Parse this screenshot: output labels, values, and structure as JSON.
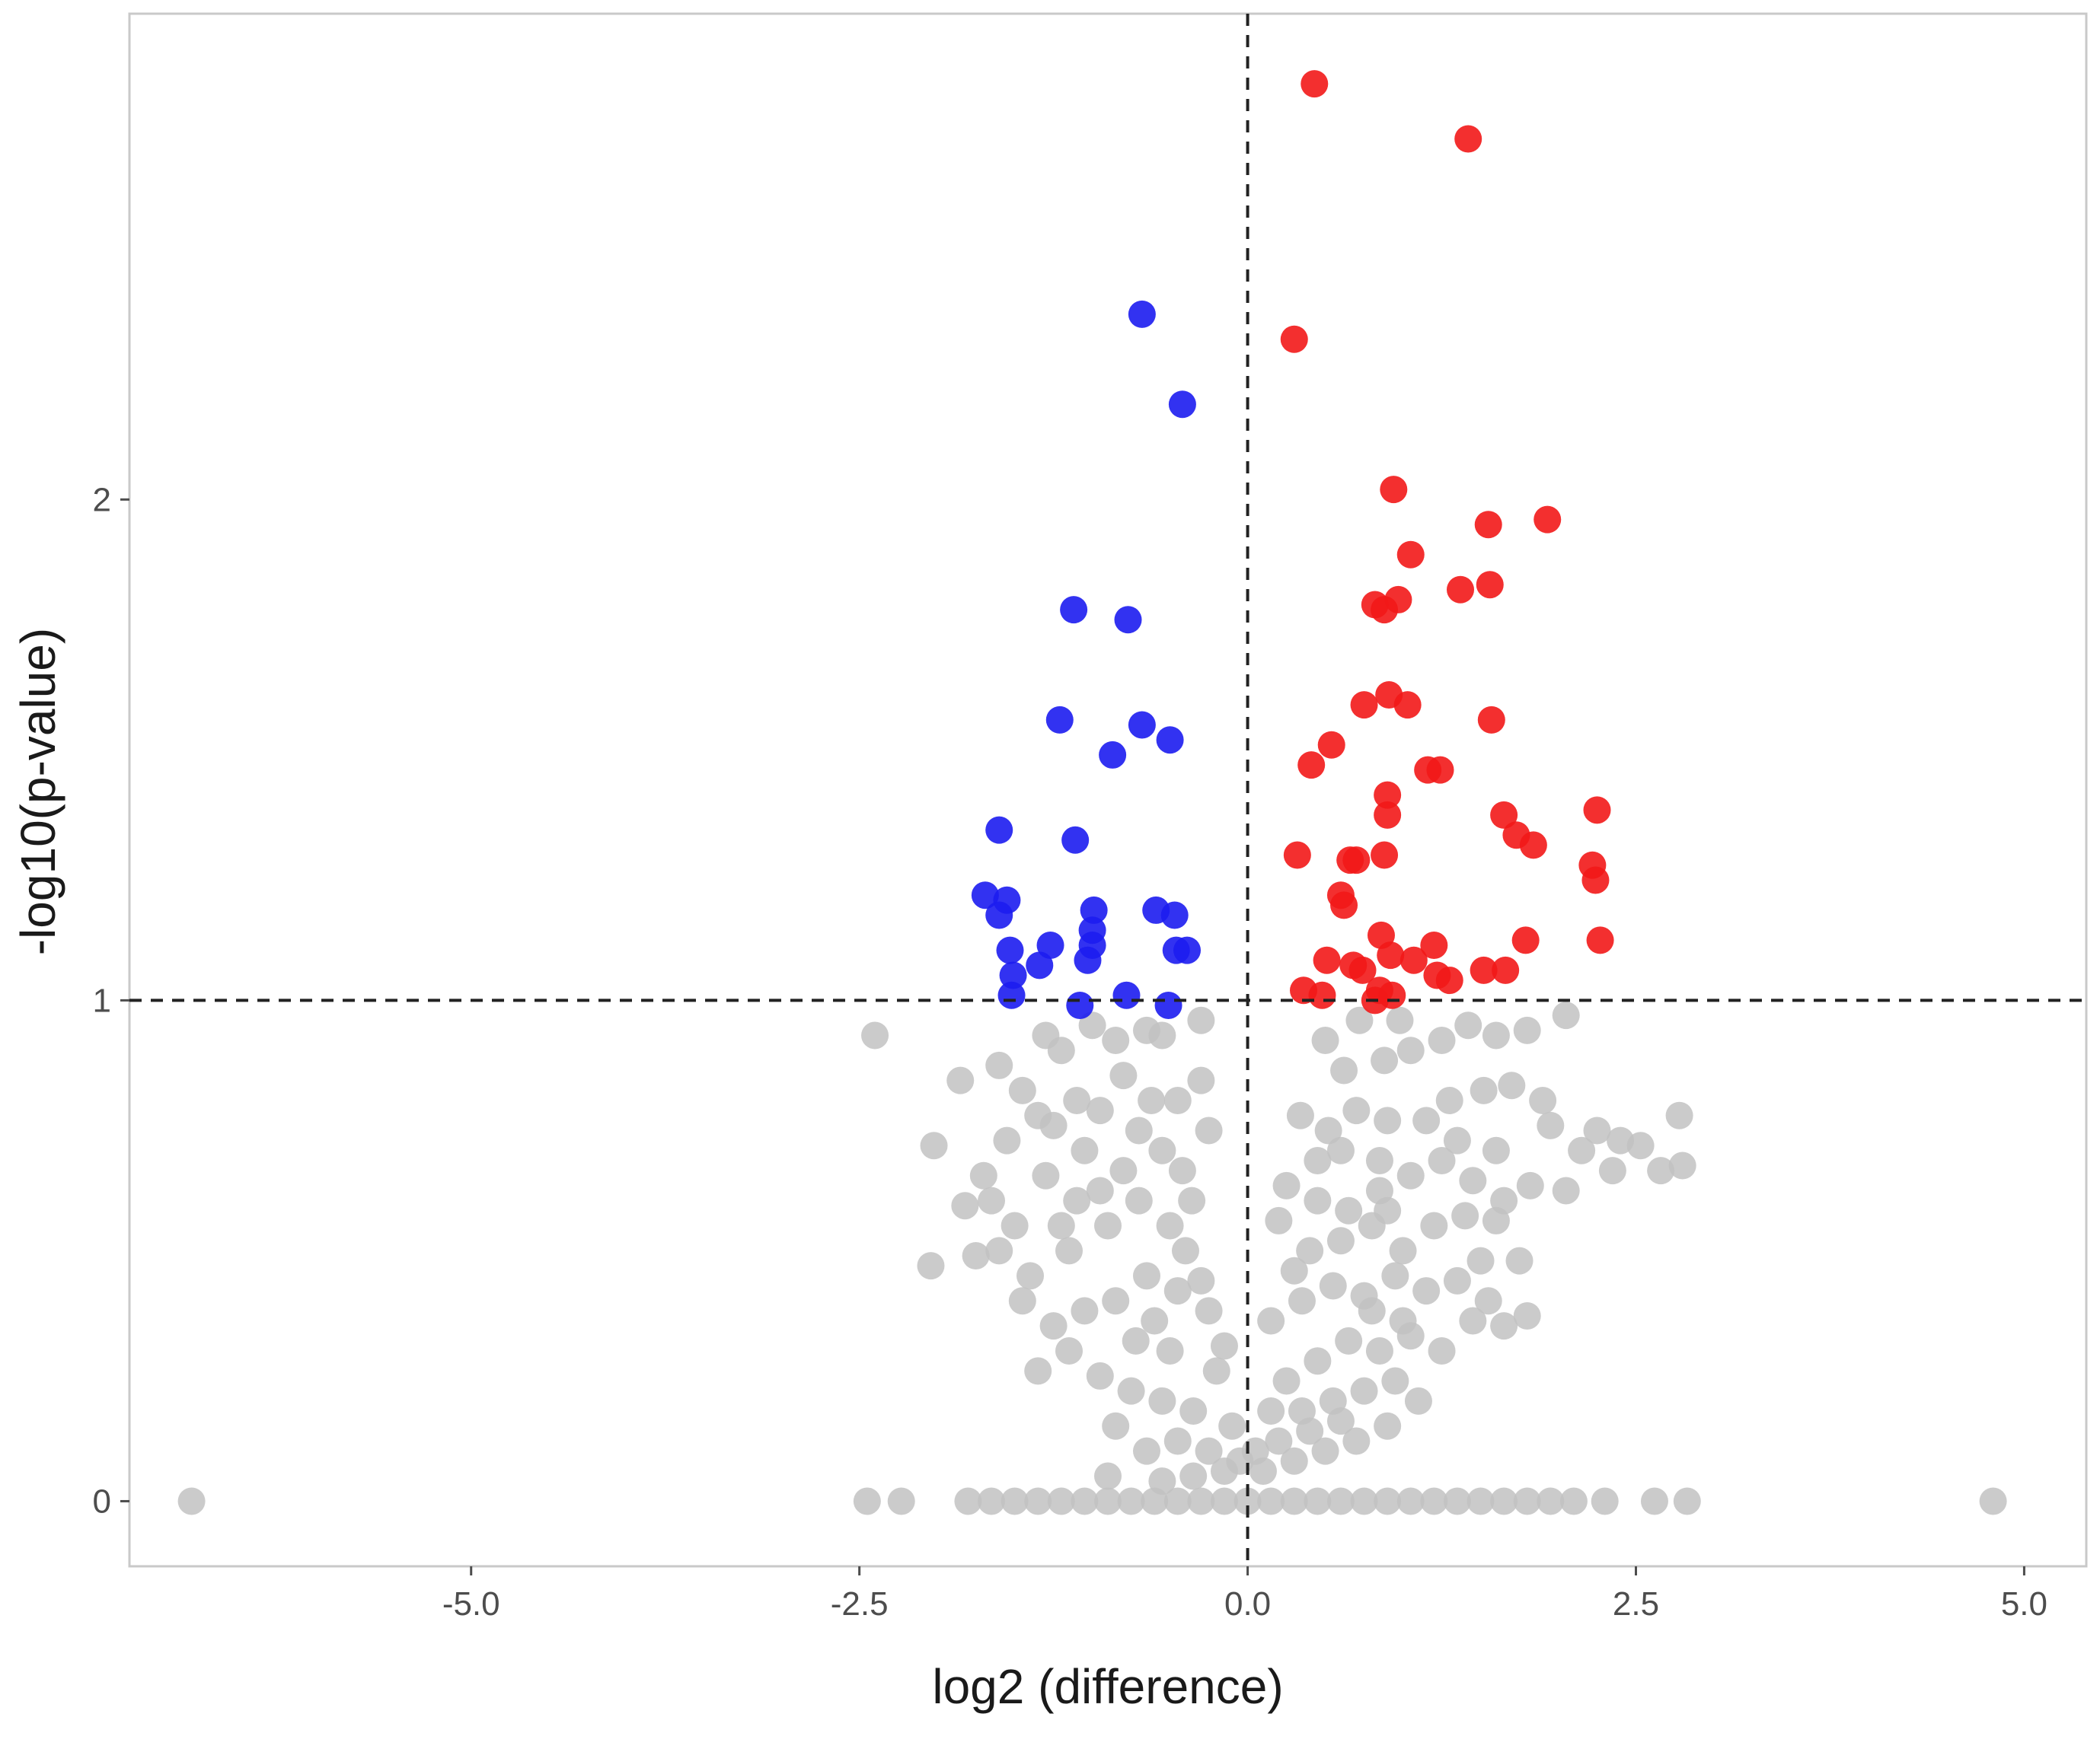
{
  "chart_data": {
    "type": "scatter",
    "title": "",
    "xlabel": "log2 (difference)",
    "ylabel": "-log10(p-value)",
    "xlim": [
      -7.2,
      5.4
    ],
    "ylim": [
      -0.13,
      2.97
    ],
    "x_ticks": [
      -5.0,
      -2.5,
      0.0,
      2.5,
      5.0
    ],
    "x_tick_labels": [
      "-5.0",
      "-2.5",
      "0.0",
      "2.5",
      "5.0"
    ],
    "y_ticks": [
      0,
      1,
      2
    ],
    "y_tick_labels": [
      "0",
      "1",
      "2"
    ],
    "threshold_lines": {
      "x": 0.0,
      "y": 1.0
    },
    "grid": false,
    "colors": {
      "up": "#f21818",
      "down": "#1c1cf0",
      "ns": "#c2c2c2",
      "threshold": "#222222",
      "frame": "#c9c9c9"
    },
    "series": [
      {
        "name": "up",
        "points": [
          [
            0.43,
            2.83
          ],
          [
            1.42,
            2.72
          ],
          [
            0.3,
            2.32
          ],
          [
            0.94,
            2.02
          ],
          [
            1.55,
            1.95
          ],
          [
            1.93,
            1.96
          ],
          [
            1.05,
            1.89
          ],
          [
            0.82,
            1.79
          ],
          [
            0.88,
            1.78
          ],
          [
            0.97,
            1.8
          ],
          [
            1.37,
            1.82
          ],
          [
            1.56,
            1.83
          ],
          [
            0.75,
            1.59
          ],
          [
            0.91,
            1.61
          ],
          [
            1.03,
            1.59
          ],
          [
            1.57,
            1.56
          ],
          [
            0.54,
            1.51
          ],
          [
            0.41,
            1.47
          ],
          [
            1.16,
            1.46
          ],
          [
            1.24,
            1.46
          ],
          [
            0.9,
            1.41
          ],
          [
            0.9,
            1.37
          ],
          [
            1.65,
            1.37
          ],
          [
            2.25,
            1.38
          ],
          [
            1.73,
            1.33
          ],
          [
            1.84,
            1.31
          ],
          [
            0.32,
            1.29
          ],
          [
            0.66,
            1.28
          ],
          [
            0.7,
            1.28
          ],
          [
            0.88,
            1.29
          ],
          [
            2.22,
            1.27
          ],
          [
            2.24,
            1.24
          ],
          [
            0.6,
            1.21
          ],
          [
            0.62,
            1.19
          ],
          [
            0.86,
            1.13
          ],
          [
            1.79,
            1.12
          ],
          [
            2.27,
            1.12
          ],
          [
            1.2,
            1.11
          ],
          [
            0.51,
            1.08
          ],
          [
            0.68,
            1.07
          ],
          [
            0.74,
            1.06
          ],
          [
            0.92,
            1.09
          ],
          [
            1.07,
            1.08
          ],
          [
            1.52,
            1.06
          ],
          [
            1.66,
            1.06
          ],
          [
            1.22,
            1.05
          ],
          [
            1.3,
            1.04
          ],
          [
            0.36,
            1.02
          ],
          [
            0.48,
            1.01
          ],
          [
            0.85,
            1.02
          ],
          [
            0.93,
            1.01
          ],
          [
            0.82,
            1.0
          ]
        ]
      },
      {
        "name": "down",
        "points": [
          [
            -0.68,
            2.37
          ],
          [
            -0.42,
            2.19
          ],
          [
            -1.12,
            1.78
          ],
          [
            -0.77,
            1.76
          ],
          [
            -1.21,
            1.56
          ],
          [
            -0.68,
            1.55
          ],
          [
            -0.5,
            1.52
          ],
          [
            -0.87,
            1.49
          ],
          [
            -1.6,
            1.34
          ],
          [
            -1.11,
            1.32
          ],
          [
            -1.69,
            1.21
          ],
          [
            -1.55,
            1.2
          ],
          [
            -1.6,
            1.17
          ],
          [
            -0.99,
            1.18
          ],
          [
            -0.59,
            1.18
          ],
          [
            -0.47,
            1.17
          ],
          [
            -1.0,
            1.14
          ],
          [
            -1.0,
            1.11
          ],
          [
            -1.27,
            1.11
          ],
          [
            -1.53,
            1.1
          ],
          [
            -0.46,
            1.1
          ],
          [
            -0.39,
            1.1
          ],
          [
            -1.03,
            1.08
          ],
          [
            -1.34,
            1.07
          ],
          [
            -1.51,
            1.05
          ],
          [
            -0.78,
            1.01
          ],
          [
            -1.52,
            1.01
          ],
          [
            -1.08,
            0.99
          ],
          [
            -0.51,
            0.99
          ]
        ]
      },
      {
        "name": "ns",
        "points": [
          [
            -6.8,
            0.0
          ],
          [
            -2.45,
            0.0
          ],
          [
            -2.23,
            0.0
          ],
          [
            4.8,
            0.0
          ],
          [
            2.62,
            0.0
          ],
          [
            2.83,
            0.0
          ],
          [
            -1.8,
            0.0
          ],
          [
            -1.65,
            0.0
          ],
          [
            -1.5,
            0.0
          ],
          [
            -1.35,
            0.0
          ],
          [
            -1.2,
            0.0
          ],
          [
            -1.05,
            0.0
          ],
          [
            -0.9,
            0.0
          ],
          [
            -0.75,
            0.0
          ],
          [
            -0.6,
            0.0
          ],
          [
            -0.45,
            0.0
          ],
          [
            -0.3,
            0.0
          ],
          [
            -0.15,
            0.0
          ],
          [
            0.0,
            0.0
          ],
          [
            0.15,
            0.0
          ],
          [
            0.3,
            0.0
          ],
          [
            0.45,
            0.0
          ],
          [
            0.6,
            0.0
          ],
          [
            0.75,
            0.0
          ],
          [
            0.9,
            0.0
          ],
          [
            1.05,
            0.0
          ],
          [
            1.2,
            0.0
          ],
          [
            1.35,
            0.0
          ],
          [
            1.5,
            0.0
          ],
          [
            1.65,
            0.0
          ],
          [
            1.8,
            0.0
          ],
          [
            1.95,
            0.0
          ],
          [
            2.1,
            0.0
          ],
          [
            2.3,
            0.0
          ],
          [
            -2.4,
            0.93
          ],
          [
            -1.85,
            0.84
          ],
          [
            -1.6,
            0.87
          ],
          [
            -2.02,
            0.71
          ],
          [
            -1.82,
            0.59
          ],
          [
            -2.04,
            0.47
          ],
          [
            -1.3,
            0.93
          ],
          [
            -1.45,
            0.82
          ],
          [
            -1.35,
            0.77
          ],
          [
            -1.2,
            0.9
          ],
          [
            -1.0,
            0.95
          ],
          [
            -0.85,
            0.92
          ],
          [
            -0.65,
            0.94
          ],
          [
            -0.55,
            0.93
          ],
          [
            -0.3,
            0.96
          ],
          [
            -0.3,
            0.84
          ],
          [
            -0.25,
            0.74
          ],
          [
            -0.45,
            0.8
          ],
          [
            -0.55,
            0.7
          ],
          [
            -0.8,
            0.85
          ],
          [
            -0.95,
            0.78
          ],
          [
            -1.1,
            0.8
          ],
          [
            -1.25,
            0.75
          ],
          [
            -1.55,
            0.72
          ],
          [
            -1.7,
            0.65
          ],
          [
            -1.65,
            0.6
          ],
          [
            -1.5,
            0.55
          ],
          [
            -1.6,
            0.5
          ],
          [
            -1.75,
            0.49
          ],
          [
            -1.4,
            0.45
          ],
          [
            -1.15,
            0.5
          ],
          [
            -0.9,
            0.55
          ],
          [
            -0.7,
            0.6
          ],
          [
            -0.5,
            0.55
          ],
          [
            -0.4,
            0.5
          ],
          [
            -0.3,
            0.44
          ],
          [
            -0.25,
            0.38
          ],
          [
            -0.45,
            0.42
          ],
          [
            -0.65,
            0.45
          ],
          [
            -0.85,
            0.4
          ],
          [
            -1.05,
            0.38
          ],
          [
            -1.25,
            0.35
          ],
          [
            -1.45,
            0.4
          ],
          [
            -1.35,
            0.26
          ],
          [
            -1.15,
            0.3
          ],
          [
            -0.95,
            0.25
          ],
          [
            -0.75,
            0.22
          ],
          [
            -0.55,
            0.2
          ],
          [
            -0.35,
            0.18
          ],
          [
            -0.2,
            0.26
          ],
          [
            -0.1,
            0.15
          ],
          [
            -0.25,
            0.1
          ],
          [
            -0.45,
            0.12
          ],
          [
            -0.65,
            0.1
          ],
          [
            -0.85,
            0.15
          ],
          [
            -0.15,
            0.06
          ],
          [
            -0.35,
            0.05
          ],
          [
            -0.55,
            0.04
          ],
          [
            -0.05,
            0.08
          ],
          [
            -0.9,
            0.05
          ],
          [
            -0.72,
            0.32
          ],
          [
            -0.6,
            0.36
          ],
          [
            -0.8,
            0.66
          ],
          [
            -0.95,
            0.62
          ],
          [
            -1.05,
            0.7
          ],
          [
            -0.62,
            0.8
          ],
          [
            -0.7,
            0.74
          ],
          [
            -0.42,
            0.66
          ],
          [
            -0.36,
            0.6
          ],
          [
            -0.5,
            0.3
          ],
          [
            -1.1,
            0.6
          ],
          [
            -1.3,
            0.65
          ],
          [
            -1.2,
            0.55
          ],
          [
            -0.15,
            0.31
          ],
          [
            0.98,
            0.96
          ],
          [
            0.72,
            0.96
          ],
          [
            0.5,
            0.92
          ],
          [
            0.62,
            0.86
          ],
          [
            0.88,
            0.88
          ],
          [
            1.05,
            0.9
          ],
          [
            1.25,
            0.92
          ],
          [
            1.42,
            0.95
          ],
          [
            1.6,
            0.93
          ],
          [
            1.8,
            0.94
          ],
          [
            2.05,
            0.97
          ],
          [
            1.7,
            0.83
          ],
          [
            1.9,
            0.8
          ],
          [
            1.52,
            0.82
          ],
          [
            1.3,
            0.8
          ],
          [
            1.15,
            0.76
          ],
          [
            0.9,
            0.76
          ],
          [
            0.7,
            0.78
          ],
          [
            0.52,
            0.74
          ],
          [
            0.34,
            0.77
          ],
          [
            1.95,
            0.75
          ],
          [
            2.15,
            0.7
          ],
          [
            2.25,
            0.74
          ],
          [
            2.4,
            0.72
          ],
          [
            2.53,
            0.71
          ],
          [
            2.78,
            0.77
          ],
          [
            2.66,
            0.66
          ],
          [
            2.8,
            0.67
          ],
          [
            2.35,
            0.66
          ],
          [
            2.05,
            0.62
          ],
          [
            1.82,
            0.63
          ],
          [
            1.65,
            0.6
          ],
          [
            1.45,
            0.64
          ],
          [
            1.25,
            0.68
          ],
          [
            1.05,
            0.65
          ],
          [
            0.85,
            0.62
          ],
          [
            0.65,
            0.58
          ],
          [
            0.45,
            0.6
          ],
          [
            0.25,
            0.63
          ],
          [
            0.2,
            0.56
          ],
          [
            0.4,
            0.5
          ],
          [
            0.6,
            0.52
          ],
          [
            0.8,
            0.55
          ],
          [
            1.0,
            0.5
          ],
          [
            1.2,
            0.55
          ],
          [
            1.4,
            0.57
          ],
          [
            1.6,
            0.56
          ],
          [
            1.75,
            0.48
          ],
          [
            1.55,
            0.4
          ],
          [
            1.35,
            0.44
          ],
          [
            1.15,
            0.42
          ],
          [
            0.95,
            0.45
          ],
          [
            0.75,
            0.41
          ],
          [
            0.55,
            0.43
          ],
          [
            0.35,
            0.4
          ],
          [
            0.15,
            0.36
          ],
          [
            1.45,
            0.36
          ],
          [
            1.65,
            0.35
          ],
          [
            1.8,
            0.37
          ],
          [
            1.25,
            0.3
          ],
          [
            1.05,
            0.33
          ],
          [
            0.85,
            0.3
          ],
          [
            0.65,
            0.32
          ],
          [
            0.45,
            0.28
          ],
          [
            0.25,
            0.24
          ],
          [
            0.15,
            0.18
          ],
          [
            0.35,
            0.18
          ],
          [
            0.55,
            0.2
          ],
          [
            0.75,
            0.22
          ],
          [
            0.95,
            0.24
          ],
          [
            1.1,
            0.2
          ],
          [
            0.9,
            0.15
          ],
          [
            0.7,
            0.12
          ],
          [
            0.5,
            0.1
          ],
          [
            0.3,
            0.08
          ],
          [
            0.1,
            0.06
          ],
          [
            0.2,
            0.12
          ],
          [
            0.4,
            0.14
          ],
          [
            0.6,
            0.16
          ],
          [
            0.05,
            0.1
          ],
          [
            1.0,
            0.36
          ],
          [
            0.8,
            0.38
          ],
          [
            1.5,
            0.48
          ],
          [
            0.6,
            0.7
          ],
          [
            0.45,
            0.68
          ],
          [
            0.85,
            0.68
          ],
          [
            1.35,
            0.72
          ],
          [
            1.6,
            0.7
          ],
          [
            0.3,
            0.46
          ],
          [
            0.9,
            0.58
          ]
        ]
      }
    ]
  }
}
